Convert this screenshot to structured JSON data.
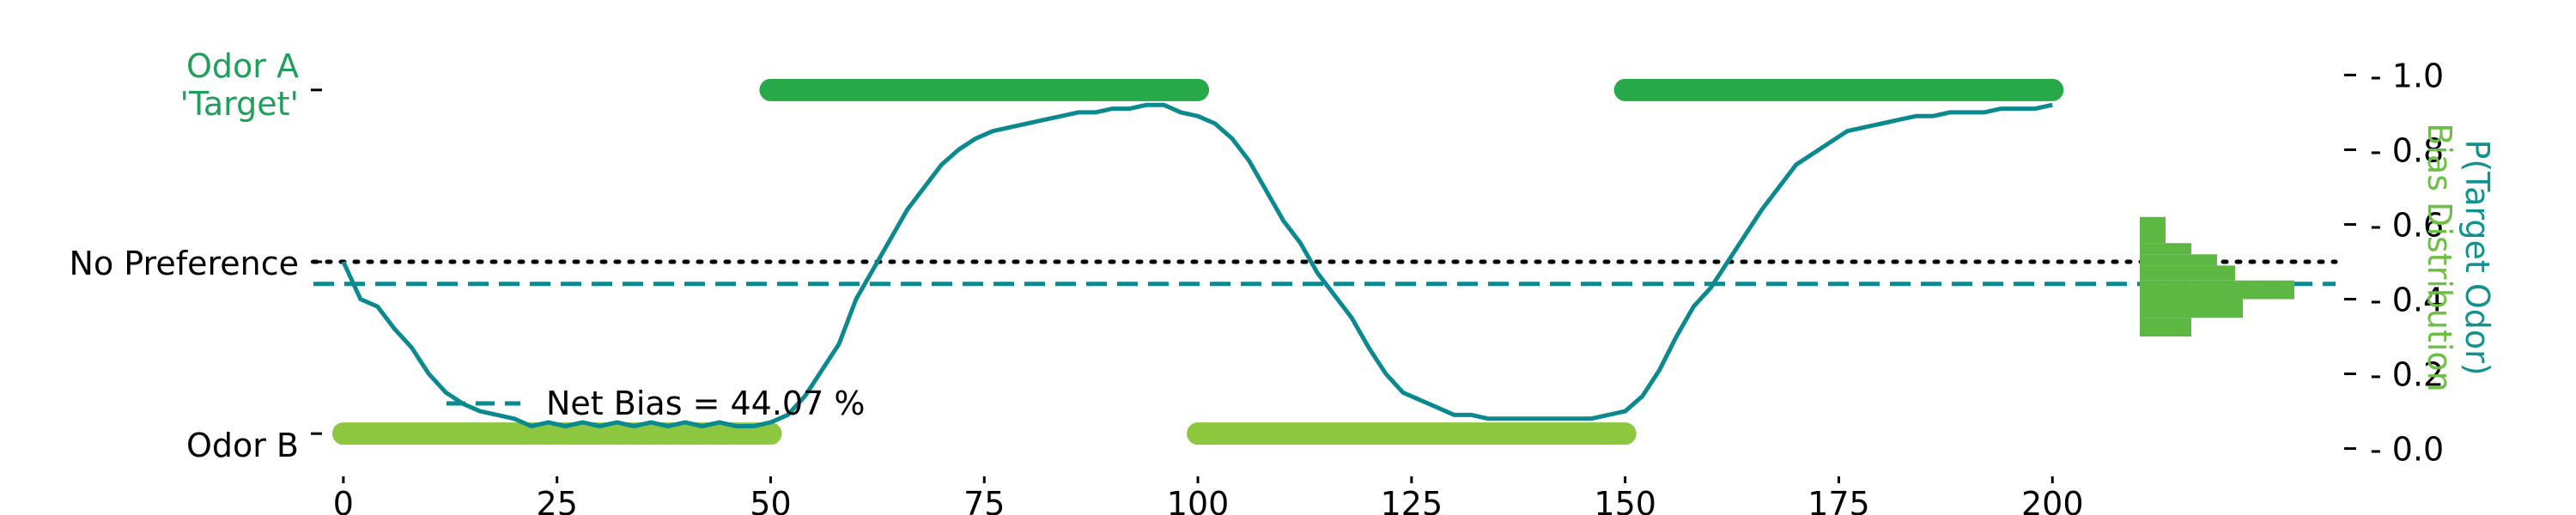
{
  "chart_data": {
    "type": "line",
    "y_left_labels": {
      "odor_a_line1": "Odor A",
      "odor_a_line2": "'Target'",
      "no_preference": "No Preference",
      "odor_b": "Odor B"
    },
    "y_right_label": "P(Target Odor)",
    "y_right_label_2": "Bias Distribution",
    "legend": {
      "label": "Net Bias = 44.07 %",
      "placement": "lower-left"
    },
    "net_bias": 0.4407,
    "xlim": [
      -2,
      205
    ],
    "ylim": [
      -0.04,
      1.04
    ],
    "x_ticks": [
      0,
      25,
      50,
      75,
      100,
      125,
      150,
      175,
      200
    ],
    "x_tick_labels": [
      "0",
      "25",
      "50",
      "75",
      "100",
      "125",
      "150",
      "175",
      "200"
    ],
    "y_ticks": [
      0.0,
      0.2,
      0.4,
      0.6,
      0.8,
      1.0
    ],
    "y_tick_labels": [
      "0.0",
      "0.2",
      "0.4",
      "0.6",
      "0.8",
      "1.0"
    ],
    "odor_levels": {
      "odor_a": 0.96,
      "no_preference": 0.5,
      "odor_b": 0.04
    },
    "colors": {
      "odor_a": "#27a849",
      "odor_b": "#8dc63f",
      "probability": "#0a8a8f",
      "bias": "#0a8a8f",
      "odor_a_label": "#1fa05a",
      "right_label": "#12928e",
      "bias_label": "#6cbf45",
      "histogram": "#5db843"
    },
    "odor_blocks": [
      {
        "odor": "B",
        "start": 0,
        "end": 50
      },
      {
        "odor": "A",
        "start": 50,
        "end": 100
      },
      {
        "odor": "B",
        "start": 100,
        "end": 150
      },
      {
        "odor": "A",
        "start": 150,
        "end": 200
      }
    ],
    "series": [
      {
        "style": "solid",
        "x": [
          0,
          2,
          4,
          6,
          8,
          10,
          12,
          14,
          16,
          18,
          20,
          22,
          24,
          26,
          28,
          30,
          32,
          34,
          36,
          38,
          40,
          42,
          44,
          46,
          48,
          50,
          52,
          54,
          56,
          58,
          60,
          62,
          64,
          66,
          68,
          70,
          72,
          74,
          76,
          78,
          80,
          82,
          84,
          86,
          88,
          90,
          92,
          94,
          96,
          98,
          100,
          102,
          104,
          106,
          108,
          110,
          112,
          114,
          116,
          118,
          120,
          122,
          124,
          126,
          128,
          130,
          132,
          134,
          136,
          138,
          140,
          142,
          144,
          146,
          148,
          150,
          152,
          154,
          156,
          158,
          160,
          162,
          164,
          166,
          168,
          170,
          172,
          174,
          176,
          178,
          180,
          182,
          184,
          186,
          188,
          190,
          192,
          194,
          196,
          198,
          200
        ],
        "y": [
          0.5,
          0.4,
          0.38,
          0.32,
          0.27,
          0.2,
          0.15,
          0.12,
          0.1,
          0.09,
          0.08,
          0.06,
          0.07,
          0.06,
          0.07,
          0.06,
          0.07,
          0.06,
          0.07,
          0.06,
          0.07,
          0.06,
          0.07,
          0.06,
          0.06,
          0.07,
          0.09,
          0.14,
          0.21,
          0.28,
          0.4,
          0.48,
          0.56,
          0.64,
          0.7,
          0.76,
          0.8,
          0.83,
          0.85,
          0.86,
          0.87,
          0.88,
          0.89,
          0.9,
          0.9,
          0.91,
          0.91,
          0.92,
          0.92,
          0.9,
          0.89,
          0.87,
          0.83,
          0.77,
          0.69,
          0.61,
          0.55,
          0.47,
          0.41,
          0.35,
          0.27,
          0.2,
          0.15,
          0.13,
          0.11,
          0.09,
          0.09,
          0.08,
          0.08,
          0.08,
          0.08,
          0.08,
          0.08,
          0.08,
          0.09,
          0.1,
          0.14,
          0.21,
          0.3,
          0.38,
          0.43,
          0.5,
          0.57,
          0.64,
          0.7,
          0.76,
          0.79,
          0.82,
          0.85,
          0.86,
          0.87,
          0.88,
          0.89,
          0.89,
          0.9,
          0.9,
          0.9,
          0.91,
          0.91,
          0.91,
          0.92
        ]
      },
      {
        "style": "dashed",
        "name": "Net Bias = 44.07 %",
        "y_const": 0.4407
      }
    ],
    "histogram": {
      "orientation": "horizontal",
      "bins": [
        {
          "lo": 0.3,
          "hi": 0.35,
          "count": 2
        },
        {
          "lo": 0.35,
          "hi": 0.4,
          "count": 4
        },
        {
          "lo": 0.4,
          "hi": 0.44,
          "count": 6
        },
        {
          "lo": 0.44,
          "hi": 0.45,
          "count": 6
        },
        {
          "lo": 0.45,
          "hi": 0.49,
          "count": 3.7
        },
        {
          "lo": 0.49,
          "hi": 0.52,
          "count": 3
        },
        {
          "lo": 0.52,
          "hi": 0.55,
          "count": 2
        },
        {
          "lo": 0.55,
          "hi": 0.62,
          "count": 1
        }
      ]
    }
  }
}
